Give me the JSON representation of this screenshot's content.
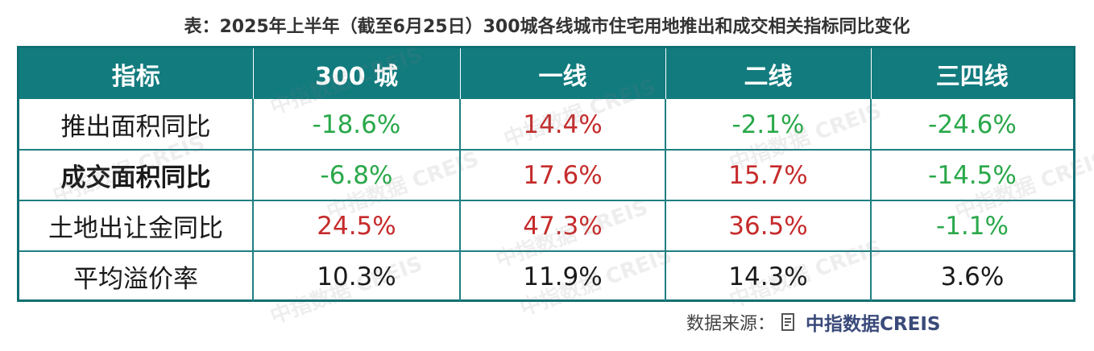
{
  "title": "表：2025年上半年（截至6月25日）300城各线城市住宅用地推出和成交相关指标同比变化",
  "table": {
    "headers": [
      "指标",
      "300 城",
      "一线",
      "二线",
      "三四线"
    ],
    "rows": [
      {
        "label": "推出面积同比",
        "bold": false,
        "cells": [
          {
            "text": "-18.6%",
            "tone": "neg"
          },
          {
            "text": "14.4%",
            "tone": "pos"
          },
          {
            "text": "-2.1%",
            "tone": "neg"
          },
          {
            "text": "-24.6%",
            "tone": "neg"
          }
        ]
      },
      {
        "label": "成交面积同比",
        "bold": true,
        "cells": [
          {
            "text": "-6.8%",
            "tone": "neg"
          },
          {
            "text": "17.6%",
            "tone": "pos"
          },
          {
            "text": "15.7%",
            "tone": "pos"
          },
          {
            "text": "-14.5%",
            "tone": "neg"
          }
        ]
      },
      {
        "label": "土地出让金同比",
        "bold": false,
        "cells": [
          {
            "text": "24.5%",
            "tone": "pos"
          },
          {
            "text": "47.3%",
            "tone": "pos"
          },
          {
            "text": "36.5%",
            "tone": "pos"
          },
          {
            "text": "-1.1%",
            "tone": "neg"
          }
        ]
      },
      {
        "label": "平均溢价率",
        "bold": false,
        "cells": [
          {
            "text": "10.3%",
            "tone": "neu"
          },
          {
            "text": "11.9%",
            "tone": "neu"
          },
          {
            "text": "14.3%",
            "tone": "neu"
          },
          {
            "text": "3.6%",
            "tone": "neu"
          }
        ]
      }
    ]
  },
  "source": {
    "label": "数据来源：",
    "icon": "document-icon",
    "brand": "中指数据CREIS"
  },
  "watermark": {
    "text": "中指数据 CREIS"
  },
  "colors": {
    "header_bg": "#127b7e",
    "border": "#0f6f73",
    "negative": "#2aa84a",
    "positive": "#c62b2b",
    "brand": "#3a4a7a"
  }
}
